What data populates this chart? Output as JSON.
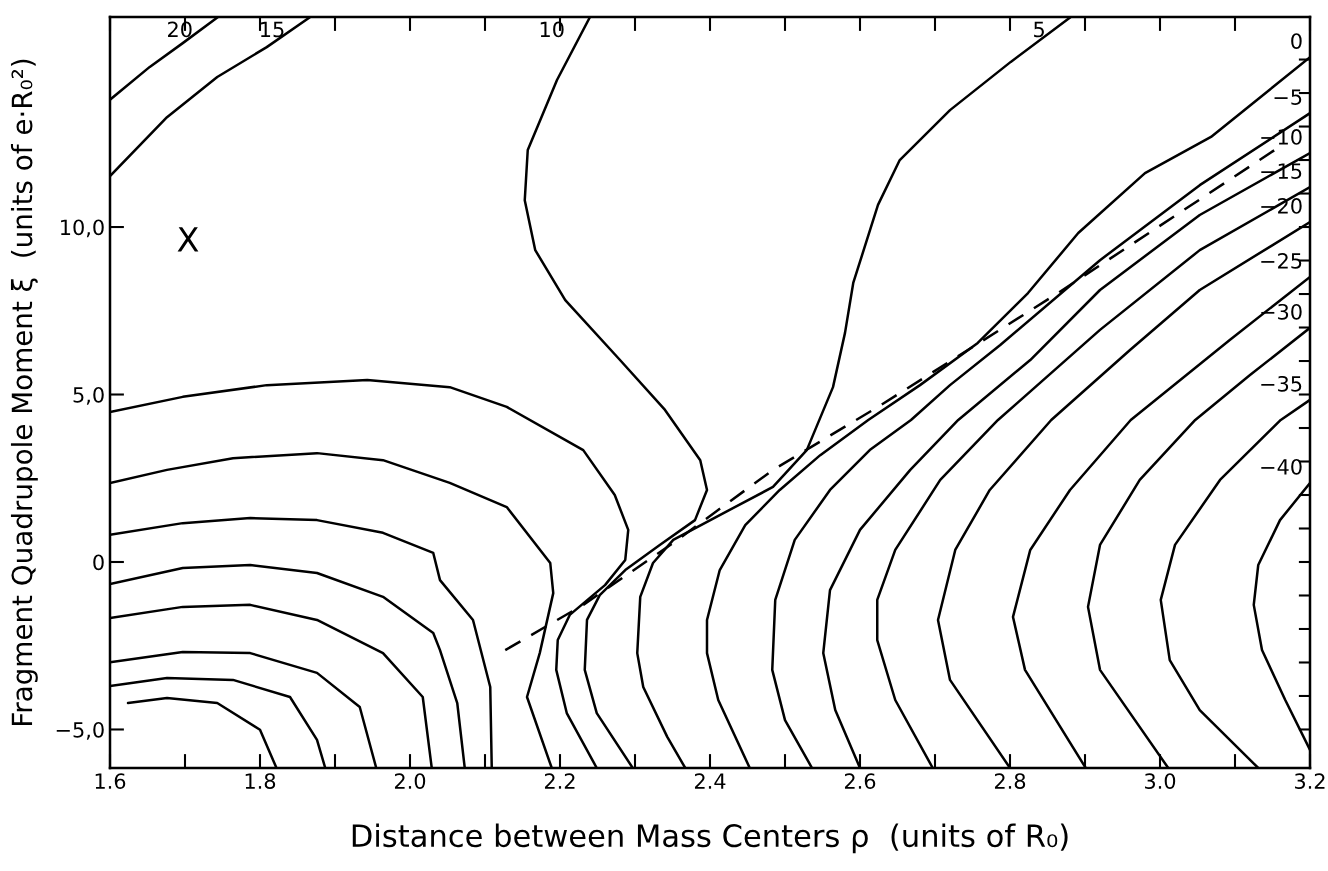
{
  "chart_data": {
    "type": "line",
    "xlabel": "Distance between Mass Centers ρ  (units of R₀)",
    "ylabel": "Fragment Quadrupole Moment ξ  (units of e·R₀²)",
    "xlim": [
      1.6,
      3.2
    ],
    "ylim": [
      -6.15,
      16.27
    ],
    "xticks": [
      1.6,
      {
        "value": 1.7,
        "label": null
      },
      1.8,
      {
        "value": 1.9,
        "label": null
      },
      {
        "value": 2.0,
        "label": "2.0"
      },
      {
        "value": 2.1,
        "label": null
      },
      2.2,
      {
        "value": 2.3,
        "label": null
      },
      2.4,
      {
        "value": 2.5,
        "label": null
      },
      2.6,
      {
        "value": 2.7,
        "label": null
      },
      2.8,
      {
        "value": 2.9,
        "label": null
      },
      {
        "value": 3.0,
        "label": "3.0"
      },
      {
        "value": 3.1,
        "label": null
      },
      3.2
    ],
    "yticks": [
      {
        "value": -5,
        "label": "−5,0"
      },
      {
        "value": -4,
        "label": null
      },
      {
        "value": -3,
        "label": null
      },
      {
        "value": -2,
        "label": null
      },
      {
        "value": -1,
        "label": null
      },
      {
        "value": 0,
        "label": "0"
      },
      {
        "value": 1,
        "label": null
      },
      {
        "value": 2,
        "label": null
      },
      {
        "value": 3,
        "label": null
      },
      {
        "value": 4,
        "label": null
      },
      {
        "value": 5,
        "label": "5,0"
      },
      {
        "value": 6,
        "label": null
      },
      {
        "value": 7,
        "label": null
      },
      {
        "value": 8,
        "label": null
      },
      {
        "value": 9,
        "label": null
      },
      {
        "value": 10,
        "label": "10,0"
      },
      {
        "value": 11,
        "label": null
      },
      {
        "value": 12,
        "label": null
      },
      {
        "value": 13,
        "label": null
      },
      {
        "value": 14,
        "label": null
      },
      {
        "value": 15,
        "label": null
      }
    ],
    "annotations": [
      "X"
    ],
    "legend": "top right",
    "series": [
      {
        "name": "20",
        "color": "#000000",
        "x": [
          1.744,
          1.697,
          1.653,
          1.6
        ],
        "values": [
          16.27,
          15.49,
          14.78,
          13.8
        ]
      },
      {
        "name": "15",
        "color": "#000000",
        "x": [
          1.867,
          1.809,
          1.743,
          1.676,
          1.6
        ],
        "values": [
          16.27,
          15.37,
          14.48,
          13.28,
          11.52
        ]
      },
      {
        "name": "10",
        "color": "#000000",
        "x": [
          2.24,
          2.196,
          2.157,
          2.153,
          2.167,
          2.207,
          2.28,
          2.34,
          2.387,
          2.396,
          2.38,
          2.333,
          2.287,
          2.253,
          2.236,
          2.233,
          2.249,
          2.297
        ],
        "values": [
          16.27,
          14.39,
          12.3,
          10.8,
          9.31,
          7.82,
          6.03,
          4.54,
          3.04,
          2.15,
          1.25,
          0.51,
          -0.24,
          -0.99,
          -1.73,
          -3.22,
          -4.51,
          -6.15
        ]
      },
      {
        "name": "5",
        "color": "#000000",
        "x": [
          2.881,
          2.801,
          2.72,
          2.653,
          2.624,
          2.591,
          2.58,
          2.564,
          2.529,
          2.484,
          2.413,
          2.351,
          2.324,
          2.307,
          2.303,
          2.311,
          2.343,
          2.367
        ],
        "values": [
          16.27,
          14.93,
          13.49,
          12.0,
          10.66,
          8.33,
          6.84,
          5.22,
          3.34,
          2.24,
          1.4,
          0.66,
          -0.03,
          -1.04,
          -2.72,
          -3.73,
          -5.22,
          -6.15
        ]
      },
      {
        "color": "#000000",
        "x": [
          1.6,
          1.697,
          1.809,
          1.943,
          2.053,
          2.129,
          2.231,
          2.273,
          2.291,
          2.287,
          2.26,
          2.213,
          2.197,
          2.195,
          2.209,
          2.249
        ],
        "values": [
          4.48,
          4.93,
          5.28,
          5.43,
          5.22,
          4.63,
          3.34,
          2.0,
          0.96,
          0.06,
          -0.69,
          -1.58,
          -2.33,
          -3.22,
          -4.51,
          -6.15
        ]
      },
      {
        "color": "#000000",
        "x": [
          1.6,
          1.676,
          1.764,
          1.876,
          1.964,
          2.053,
          2.129,
          2.187,
          2.191,
          2.173,
          2.156,
          2.189
        ],
        "values": [
          2.36,
          2.75,
          3.1,
          3.25,
          3.04,
          2.36,
          1.64,
          -0.03,
          -0.93,
          -2.72,
          -4.03,
          -6.15
        ]
      },
      {
        "color": "#000000",
        "x": [
          1.6,
          1.697,
          1.787,
          1.876,
          1.964,
          2.031,
          2.04,
          2.084,
          2.107,
          2.109
        ],
        "values": [
          0.81,
          1.16,
          1.31,
          1.25,
          0.87,
          0.27,
          -0.54,
          -1.73,
          -3.73,
          -6.15
        ]
      },
      {
        "color": "#000000",
        "x": [
          1.6,
          1.697,
          1.787,
          1.876,
          1.964,
          2.031,
          2.04,
          2.063,
          2.073
        ],
        "values": [
          -0.66,
          -0.18,
          -0.09,
          -0.33,
          -1.04,
          -2.12,
          -2.63,
          -4.21,
          -6.15
        ]
      },
      {
        "color": "#000000",
        "x": [
          1.6,
          1.697,
          1.787,
          1.876,
          1.964,
          2.017,
          2.029
        ],
        "values": [
          -1.67,
          -1.34,
          -1.28,
          -1.73,
          -2.72,
          -4.03,
          -6.15
        ]
      },
      {
        "color": "#000000",
        "x": [
          1.6,
          1.697,
          1.787,
          1.876,
          1.933,
          1.955
        ],
        "values": [
          -2.99,
          -2.69,
          -2.72,
          -3.31,
          -4.33,
          -6.15
        ]
      },
      {
        "color": "#000000",
        "x": [
          1.6,
          1.676,
          1.764,
          1.84,
          1.876,
          1.887
        ],
        "values": [
          -3.7,
          -3.46,
          -3.52,
          -4.03,
          -5.31,
          -6.15
        ]
      },
      {
        "color": "#000000",
        "x": [
          1.624,
          1.676,
          1.743,
          1.8,
          1.822
        ],
        "values": [
          -4.21,
          -4.06,
          -4.21,
          -5.01,
          -6.15
        ]
      },
      {
        "name": "0",
        "color": "#000000",
        "x": [
          3.2,
          3.068,
          2.98,
          2.891,
          2.824,
          2.757,
          2.68,
          2.611,
          2.547,
          2.493,
          2.447,
          2.413,
          2.396,
          2.396,
          2.411,
          2.453
        ],
        "values": [
          15.07,
          12.69,
          11.61,
          9.82,
          8.03,
          6.54,
          5.28,
          4.24,
          3.19,
          2.15,
          1.1,
          -0.24,
          -1.73,
          -2.72,
          -4.12,
          -6.15
        ]
      },
      {
        "name": "−5",
        "color": "#000000",
        "x": [
          3.2,
          3.053,
          2.92,
          2.787,
          2.72,
          2.668,
          2.613,
          2.56,
          2.513,
          2.487,
          2.483,
          2.5,
          2.536
        ],
        "values": [
          13.4,
          11.25,
          9.01,
          6.48,
          5.28,
          4.24,
          3.34,
          2.15,
          0.66,
          -1.13,
          -3.22,
          -4.72,
          -6.15
        ]
      },
      {
        "name": "−10",
        "color": "#000000",
        "x": [
          3.2,
          3.053,
          2.92,
          2.827,
          2.731,
          2.667,
          2.6,
          2.56,
          2.551,
          2.567,
          2.6
        ],
        "values": [
          12.21,
          10.36,
          8.12,
          6.03,
          4.24,
          2.75,
          0.96,
          -0.84,
          -2.72,
          -4.42,
          -6.15
        ]
      },
      {
        "name": "−15",
        "color": "#000000",
        "x": [
          3.2,
          3.053,
          2.92,
          2.784,
          2.707,
          2.647,
          2.623,
          2.623,
          2.647,
          2.697
        ],
        "values": [
          11.19,
          9.31,
          6.93,
          4.24,
          2.45,
          0.36,
          -1.13,
          -2.33,
          -4.12,
          -6.15
        ]
      },
      {
        "name": "−20",
        "color": "#000000",
        "x": [
          3.2,
          3.053,
          2.96,
          2.855,
          2.773,
          2.727,
          2.704,
          2.72,
          2.8
        ],
        "values": [
          10.15,
          8.12,
          6.33,
          4.24,
          2.15,
          0.36,
          -1.73,
          -3.52,
          -6.15
        ]
      },
      {
        "name": "−25",
        "color": "#000000",
        "x": [
          3.2,
          3.093,
          2.961,
          2.88,
          2.827,
          2.804,
          2.82,
          2.901
        ],
        "values": [
          8.51,
          6.63,
          4.24,
          2.15,
          0.36,
          -1.64,
          -3.22,
          -6.15
        ]
      },
      {
        "name": "−30",
        "color": "#000000",
        "x": [
          3.2,
          3.12,
          3.047,
          2.973,
          2.92,
          2.904,
          2.92,
          3.011
        ],
        "values": [
          6.99,
          5.58,
          4.24,
          2.45,
          0.51,
          -1.34,
          -3.22,
          -6.15
        ]
      },
      {
        "name": "−35",
        "color": "#000000",
        "x": [
          3.2,
          3.161,
          3.08,
          3.02,
          3.001,
          3.013,
          3.053,
          3.131
        ],
        "values": [
          4.84,
          4.24,
          2.45,
          0.51,
          -1.13,
          -2.93,
          -4.42,
          -6.15
        ]
      },
      {
        "name": "−40",
        "color": "#000000",
        "x": [
          3.2,
          3.16,
          3.131,
          3.125,
          3.136,
          3.167,
          3.2
        ],
        "values": [
          2.36,
          1.25,
          -0.09,
          -1.28,
          -2.63,
          -4.12,
          -5.61
        ]
      },
      {
        "color": "#000000",
        "line_style": "dashed",
        "x": [
          2.127,
          2.231,
          2.351,
          2.484,
          2.624,
          2.864,
          3.153
        ],
        "values": [
          -2.63,
          -1.28,
          0.57,
          2.75,
          4.63,
          8.03,
          12.3
        ]
      }
    ]
  }
}
